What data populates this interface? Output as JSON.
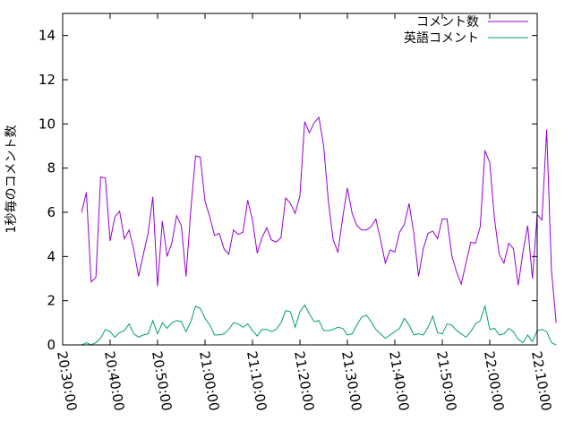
{
  "chart_data": {
    "type": "line",
    "title": "",
    "xlabel": "",
    "ylabel": "1秒毎のコメント数",
    "xlim": [
      "20:30:00",
      "22:10:00"
    ],
    "ylim": [
      0,
      15
    ],
    "yticks": [
      "0",
      "2",
      "4",
      "6",
      "8",
      "10",
      "12",
      "14"
    ],
    "xticks": [
      "20:30:00",
      "20:40:00",
      "20:50:00",
      "21:00:00",
      "21:10:00",
      "21:20:00",
      "21:30:00",
      "21:40:00",
      "21:50:00",
      "22:00:00",
      "22:10:00"
    ],
    "grid": false,
    "legend": "top-right",
    "x_start": "20:34:00",
    "x_step_minutes": 1,
    "colors": {
      "series0": "#9400d3",
      "series1": "#009e73",
      "frame": "#000000"
    },
    "series": [
      {
        "name": "コメント数",
        "values": [
          6.0,
          6.9,
          2.85,
          3.05,
          7.6,
          7.55,
          4.7,
          5.8,
          6.05,
          4.8,
          5.2,
          4.3,
          3.1,
          4.1,
          5.05,
          6.7,
          2.65,
          5.6,
          4.0,
          4.6,
          5.85,
          5.4,
          3.1,
          6.1,
          8.55,
          8.5,
          6.5,
          5.8,
          4.95,
          5.05,
          4.35,
          4.1,
          5.2,
          5.0,
          5.1,
          6.55,
          5.65,
          4.15,
          4.85,
          5.3,
          4.75,
          4.65,
          4.85,
          6.65,
          6.4,
          5.95,
          6.75,
          10.1,
          9.6,
          10.05,
          10.3,
          9.0,
          6.5,
          4.75,
          4.2,
          5.75,
          7.1,
          5.95,
          5.4,
          5.2,
          5.2,
          5.35,
          5.7,
          4.75,
          3.7,
          4.3,
          4.2,
          5.1,
          5.45,
          6.4,
          5.05,
          3.1,
          4.35,
          5.05,
          5.15,
          4.8,
          5.7,
          5.7,
          4.05,
          3.3,
          2.75,
          3.7,
          4.65,
          4.6,
          5.35,
          8.8,
          8.25,
          5.7,
          4.1,
          3.7,
          4.6,
          4.35,
          2.7,
          4.2,
          5.4,
          3.0,
          5.9,
          5.65,
          9.75,
          3.4,
          1.0
        ]
      },
      {
        "name": "英語コメント",
        "values": [
          0.0,
          0.1,
          0.0,
          0.1,
          0.3,
          0.7,
          0.6,
          0.35,
          0.55,
          0.65,
          0.95,
          0.5,
          0.35,
          0.45,
          0.5,
          1.1,
          0.5,
          1.0,
          0.75,
          1.0,
          1.1,
          1.05,
          0.6,
          1.05,
          1.75,
          1.65,
          1.2,
          0.9,
          0.45,
          0.45,
          0.5,
          0.7,
          1.0,
          0.95,
          0.8,
          0.95,
          0.65,
          0.4,
          0.7,
          0.7,
          0.6,
          0.7,
          1.0,
          1.55,
          1.5,
          0.8,
          1.5,
          1.8,
          1.4,
          1.05,
          1.1,
          0.65,
          0.65,
          0.7,
          0.8,
          0.75,
          0.45,
          0.5,
          0.9,
          1.25,
          1.35,
          1.05,
          0.7,
          0.5,
          0.3,
          0.45,
          0.6,
          0.75,
          1.2,
          0.9,
          0.45,
          0.5,
          0.45,
          0.8,
          1.3,
          0.55,
          0.5,
          0.95,
          0.9,
          0.65,
          0.5,
          0.35,
          0.6,
          0.95,
          1.1,
          1.75,
          0.7,
          0.75,
          0.45,
          0.5,
          0.75,
          0.6,
          0.25,
          0.1,
          0.45,
          0.15,
          0.65,
          0.7,
          0.6,
          0.1,
          0.0
        ]
      }
    ]
  }
}
